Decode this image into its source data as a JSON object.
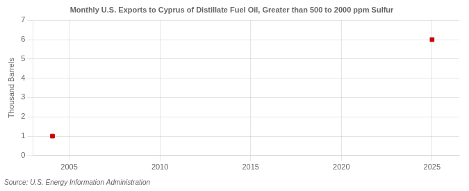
{
  "chart_data": {
    "type": "scatter",
    "title": "Monthly U.S. Exports to Cyprus of Distillate Fuel Oil, Greater than 500 to 2000 ppm Sulfur",
    "ylabel": "Thousand Barrels",
    "annotation": "Source: U.S. Energy Information Administration",
    "x": [
      2004.08,
      2025.0
    ],
    "values": [
      1.0,
      6.0
    ],
    "color": "#cc0000",
    "marker": "square",
    "xlim": [
      2003.0,
      2026.5
    ],
    "ylim": [
      0,
      7
    ],
    "xticks": [
      2005,
      2010,
      2015,
      2020,
      2025
    ],
    "yticks": [
      0,
      1,
      2,
      3,
      4,
      5,
      6,
      7
    ],
    "grid": true
  }
}
